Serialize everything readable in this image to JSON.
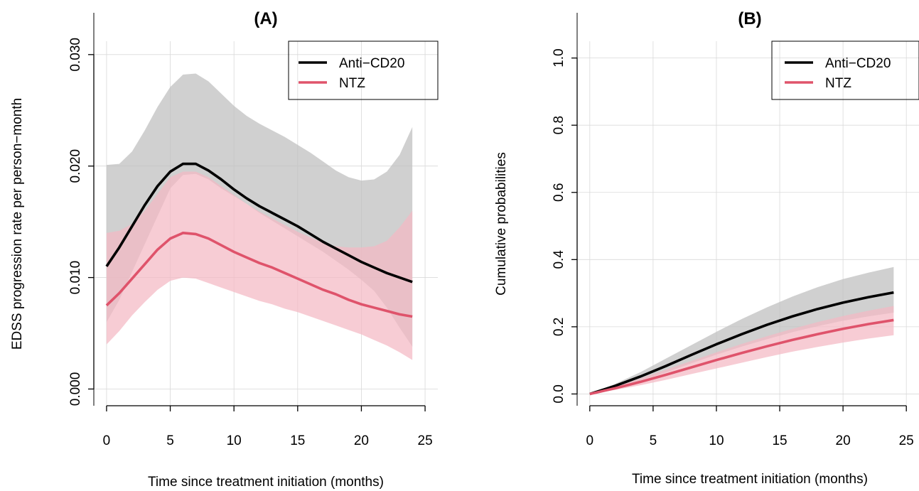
{
  "chart_data": [
    {
      "type": "line",
      "title": "(A)",
      "xlabel": "Time since treatment initiation (months)",
      "ylabel": "EDSS progression rate per person−month",
      "xlim": [
        -1,
        26
      ],
      "ylim": [
        -0.0015,
        0.0312
      ],
      "x_ticks": [
        0,
        5,
        10,
        15,
        20,
        25
      ],
      "y_ticks": [
        0.0,
        0.01,
        0.02,
        0.03
      ],
      "y_tick_labels": [
        "0.000",
        "0.010",
        "0.020",
        "0.030"
      ],
      "x_tick_labels": [
        "0",
        "5",
        "10",
        "15",
        "20",
        "25"
      ],
      "grid": true,
      "legend_position": "top-right",
      "series": [
        {
          "name": "Anti−CD20",
          "color": "#000000",
          "band_color": "#bebebe",
          "x": [
            0,
            1,
            2,
            3,
            4,
            5,
            6,
            7,
            8,
            9,
            10,
            11,
            12,
            13,
            14,
            15,
            16,
            17,
            18,
            19,
            20,
            21,
            22,
            23,
            24
          ],
          "y": [
            0.011,
            0.0127,
            0.0146,
            0.0165,
            0.0182,
            0.0195,
            0.0202,
            0.0202,
            0.0196,
            0.0188,
            0.0179,
            0.0171,
            0.0164,
            0.0158,
            0.0152,
            0.0146,
            0.0139,
            0.0132,
            0.0126,
            0.012,
            0.0114,
            0.0109,
            0.0104,
            0.01,
            0.0096
          ],
          "lower": [
            0.006,
            0.008,
            0.0105,
            0.013,
            0.0155,
            0.018,
            0.0192,
            0.0193,
            0.0188,
            0.018,
            0.0173,
            0.0166,
            0.0158,
            0.0151,
            0.0144,
            0.0137,
            0.013,
            0.0123,
            0.0115,
            0.0107,
            0.0098,
            0.0088,
            0.0073,
            0.0055,
            0.0038
          ],
          "upper": [
            0.0201,
            0.0202,
            0.0213,
            0.0232,
            0.0253,
            0.0271,
            0.0282,
            0.0283,
            0.0276,
            0.0265,
            0.0254,
            0.0245,
            0.0238,
            0.0232,
            0.0226,
            0.0219,
            0.0212,
            0.0204,
            0.0196,
            0.019,
            0.0187,
            0.0188,
            0.0195,
            0.021,
            0.0235
          ]
        },
        {
          "name": "NTZ",
          "color": "#df536b",
          "band_color": "#f4b9c4",
          "x": [
            0,
            1,
            2,
            3,
            4,
            5,
            6,
            7,
            8,
            9,
            10,
            11,
            12,
            13,
            14,
            15,
            16,
            17,
            18,
            19,
            20,
            21,
            22,
            23,
            24
          ],
          "y": [
            0.0075,
            0.0086,
            0.0099,
            0.0112,
            0.0125,
            0.0135,
            0.014,
            0.0139,
            0.0135,
            0.0129,
            0.0123,
            0.0118,
            0.0113,
            0.0109,
            0.0104,
            0.0099,
            0.0094,
            0.0089,
            0.0085,
            0.008,
            0.0076,
            0.0073,
            0.007,
            0.0067,
            0.0065
          ],
          "lower": [
            0.004,
            0.0052,
            0.0066,
            0.0078,
            0.0089,
            0.0097,
            0.01,
            0.0099,
            0.0095,
            0.0091,
            0.0087,
            0.0083,
            0.0079,
            0.0076,
            0.0072,
            0.0069,
            0.0065,
            0.0061,
            0.0057,
            0.0053,
            0.0049,
            0.0044,
            0.0039,
            0.0033,
            0.0026
          ],
          "upper": [
            0.014,
            0.0142,
            0.0148,
            0.016,
            0.0175,
            0.019,
            0.0195,
            0.0195,
            0.019,
            0.0182,
            0.0174,
            0.0166,
            0.0159,
            0.0153,
            0.0147,
            0.0141,
            0.0136,
            0.0131,
            0.0128,
            0.0127,
            0.0127,
            0.0128,
            0.0133,
            0.0145,
            0.016
          ]
        }
      ]
    },
    {
      "type": "line",
      "title": "(B)",
      "xlabel": "Time since treatment initiation (months)",
      "ylabel": "Cumulative probabilities",
      "xlim": [
        -1,
        26
      ],
      "ylim": [
        -0.035,
        1.05
      ],
      "x_ticks": [
        0,
        5,
        10,
        15,
        20,
        25
      ],
      "y_ticks": [
        0.0,
        0.2,
        0.4,
        0.6,
        0.8,
        1.0
      ],
      "y_tick_labels": [
        "0.0",
        "0.2",
        "0.4",
        "0.6",
        "0.8",
        "1.0"
      ],
      "x_tick_labels": [
        "0",
        "5",
        "10",
        "15",
        "20",
        "25"
      ],
      "grid": true,
      "legend_position": "top-right",
      "series": [
        {
          "name": "Anti−CD20",
          "color": "#000000",
          "band_color": "#bebebe",
          "x": [
            0,
            2,
            4,
            6,
            8,
            10,
            12,
            14,
            16,
            18,
            20,
            22,
            24
          ],
          "y": [
            0.0,
            0.024,
            0.052,
            0.083,
            0.116,
            0.148,
            0.178,
            0.206,
            0.231,
            0.253,
            0.272,
            0.288,
            0.302
          ],
          "lower": [
            0.0,
            0.018,
            0.04,
            0.064,
            0.091,
            0.117,
            0.141,
            0.163,
            0.184,
            0.202,
            0.218,
            0.231,
            0.242
          ],
          "upper": [
            0.0,
            0.03,
            0.065,
            0.105,
            0.145,
            0.185,
            0.223,
            0.258,
            0.29,
            0.318,
            0.342,
            0.361,
            0.378
          ]
        },
        {
          "name": "NTZ",
          "color": "#df536b",
          "band_color": "#f4b9c4",
          "x": [
            0,
            2,
            4,
            6,
            8,
            10,
            12,
            14,
            16,
            18,
            20,
            22,
            24
          ],
          "y": [
            0.0,
            0.017,
            0.036,
            0.057,
            0.079,
            0.101,
            0.122,
            0.142,
            0.161,
            0.178,
            0.194,
            0.208,
            0.22
          ],
          "lower": [
            0.0,
            0.012,
            0.026,
            0.042,
            0.059,
            0.076,
            0.093,
            0.11,
            0.126,
            0.14,
            0.153,
            0.165,
            0.175
          ],
          "upper": [
            0.0,
            0.022,
            0.046,
            0.072,
            0.098,
            0.124,
            0.149,
            0.172,
            0.194,
            0.214,
            0.232,
            0.248,
            0.262
          ]
        }
      ]
    }
  ]
}
